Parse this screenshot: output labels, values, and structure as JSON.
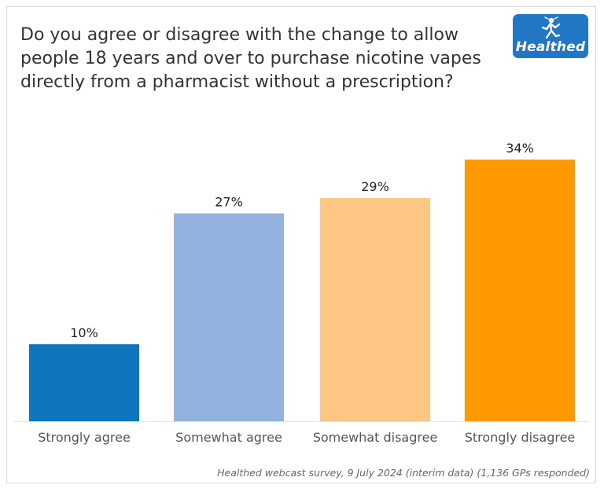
{
  "title": "Do you agree or disagree with the change to allow people 18 years and over to purchase nicotine vapes directly from a pharmacist without a prescription?",
  "logo": {
    "text": "Healthed",
    "icon": "hermes-figure-icon",
    "color": "#2277c4"
  },
  "footnote": "Healthed webcast survey, 9 July 2024 (interim data) (1,136 GPs responded)",
  "chart_data": {
    "type": "bar",
    "title": "Do you agree or disagree with the change to allow people 18 years and over to purchase nicotine vapes directly from a pharmacist without a prescription?",
    "categories": [
      "Strongly agree",
      "Somewhat agree",
      "Somewhat disagree",
      "Strongly disagree"
    ],
    "values": [
      10,
      27,
      29,
      34
    ],
    "value_labels": [
      "10%",
      "27%",
      "29%",
      "34%"
    ],
    "colors": [
      "#0f75bc",
      "#93b2de",
      "#ffc784",
      "#ff9900"
    ],
    "ylim": [
      0,
      40
    ],
    "xlabel": "",
    "ylabel": "",
    "grid": false,
    "legend": "none"
  }
}
